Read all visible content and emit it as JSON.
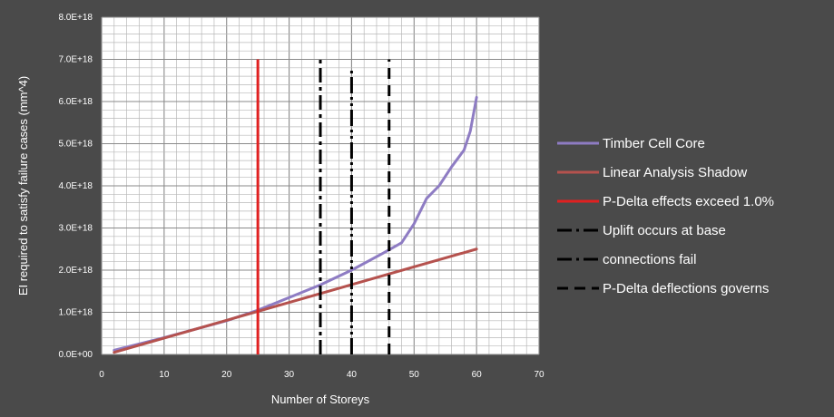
{
  "chart_data": {
    "type": "line",
    "xlabel": "Number of Storeys",
    "ylabel": "EI required to satisfy failure cases (mm^4)",
    "xlim": [
      0,
      70
    ],
    "ylim": [
      0,
      8e+18
    ],
    "grid": true,
    "legend_position": "right",
    "x_ticks": [
      0,
      10,
      20,
      30,
      40,
      50,
      60,
      70
    ],
    "x_tick_labels": [
      "0",
      "10",
      "20",
      "30",
      "40",
      "50",
      "60",
      "70"
    ],
    "y_ticks": [
      0,
      1e+18,
      2e+18,
      3e+18,
      4e+18,
      5e+18,
      6e+18,
      7e+18,
      8e+18
    ],
    "y_tick_labels": [
      "0.0E+00",
      "1.0E+18",
      "2.0E+18",
      "3.0E+18",
      "4.0E+18",
      "5.0E+18",
      "6.0E+18",
      "7.0E+18",
      "8.0E+18"
    ],
    "series": [
      {
        "name": "Timber Cell Core",
        "kind": "line",
        "color": "#8e7cc3",
        "x": [
          2,
          10,
          20,
          25,
          30,
          35,
          40,
          45,
          48,
          50,
          52,
          54,
          56,
          58,
          59,
          60
        ],
        "y": [
          1e+17,
          4e+17,
          8e+17,
          1.05e+18,
          1.35e+18,
          1.65e+18,
          2e+18,
          2.4e+18,
          2.65e+18,
          3.1e+18,
          3.7e+18,
          4e+18,
          4.45e+18,
          4.85e+18,
          5.3e+18,
          6.1e+18
        ]
      },
      {
        "name": "Linear Analysis Shadow",
        "kind": "line",
        "color": "#b5524e",
        "x": [
          2,
          60
        ],
        "y": [
          5e+16,
          2.5e+18
        ]
      },
      {
        "name": "P-Delta effects exceed 1.0%",
        "kind": "vline",
        "color": "#e02020",
        "style": "solid",
        "x": 25,
        "y_top": 7e+18
      },
      {
        "name": "Uplift occurs at base",
        "kind": "vline",
        "color": "#000000",
        "style": "dashdot",
        "x": 35,
        "y_top": 7e+18
      },
      {
        "name": "connections fail",
        "kind": "vline",
        "color": "#000000",
        "style": "dashdotdot",
        "x": 40,
        "y_top": 6.8e+18
      },
      {
        "name": "P-Delta deflections governs",
        "kind": "vline",
        "color": "#000000",
        "style": "dashed",
        "x": 46,
        "y_top": 7e+18
      }
    ]
  }
}
